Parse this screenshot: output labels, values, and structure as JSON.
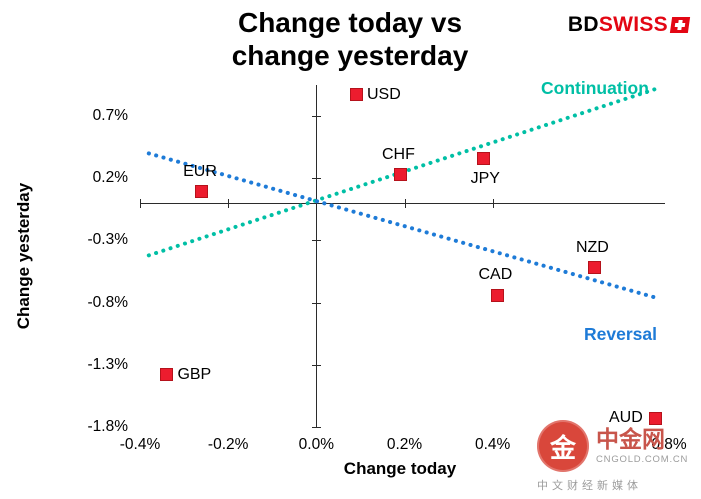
{
  "title": {
    "line1": "Change today vs",
    "line2": "change yesterday"
  },
  "logo": {
    "bd": "BD",
    "swiss": "SWISS"
  },
  "watermark": {
    "glyph": "金",
    "name": "中金网",
    "domain": "CNGOLD.COM.CN",
    "tagline": "中文财经新媒体"
  },
  "chart_data": {
    "type": "scatter",
    "title": "Change today vs change yesterday",
    "xlabel": "Change today",
    "ylabel": "Change yesterday",
    "xlim": [
      -0.4,
      0.8
    ],
    "ylim": [
      -1.8,
      0.95
    ],
    "grid": false,
    "legend": false,
    "marker": "square",
    "marker_color": "#ec1c2e",
    "x_ticks": [
      {
        "value": -0.4,
        "label": "-0.4%"
      },
      {
        "value": -0.2,
        "label": "-0.2%"
      },
      {
        "value": 0.0,
        "label": "0.0%"
      },
      {
        "value": 0.2,
        "label": "0.2%"
      },
      {
        "value": 0.4,
        "label": "0.4%"
      },
      {
        "value": 0.8,
        "label": "0.8%"
      }
    ],
    "y_ticks": [
      {
        "value": 0.7,
        "label": "0.7%"
      },
      {
        "value": 0.2,
        "label": "0.2%"
      },
      {
        "value": -0.3,
        "label": "-0.3%"
      },
      {
        "value": -0.8,
        "label": "-0.8%"
      },
      {
        "value": -1.3,
        "label": "-1.3%"
      },
      {
        "value": -1.8,
        "label": "-1.8%"
      }
    ],
    "points": [
      {
        "name": "USD",
        "x": 0.09,
        "y": 0.87,
        "label_pos": "right"
      },
      {
        "name": "CHF",
        "x": 0.19,
        "y": 0.23,
        "label_pos": "above"
      },
      {
        "name": "JPY",
        "x": 0.38,
        "y": 0.36,
        "label_pos": "below"
      },
      {
        "name": "EUR",
        "x": -0.26,
        "y": 0.09,
        "label_pos": "above"
      },
      {
        "name": "NZD",
        "x": 0.63,
        "y": -0.52,
        "label_pos": "above"
      },
      {
        "name": "CAD",
        "x": 0.41,
        "y": -0.74,
        "label_pos": "above"
      },
      {
        "name": "GBP",
        "x": -0.34,
        "y": -1.38,
        "label_pos": "right"
      },
      {
        "name": "AUD",
        "x": 0.77,
        "y": -1.73,
        "label_pos": "left"
      }
    ],
    "trend_lines": [
      {
        "name": "Continuation",
        "label": "Continuation",
        "color": "#00BFA5",
        "x1": -0.38,
        "y1": -0.42,
        "x2": 0.78,
        "y2": 0.93,
        "style": "dotted"
      },
      {
        "name": "Reversal",
        "label": "Reversal",
        "color": "#1E7BD7",
        "x1": -0.38,
        "y1": 0.4,
        "x2": 0.78,
        "y2": -0.77,
        "style": "dotted"
      }
    ]
  }
}
